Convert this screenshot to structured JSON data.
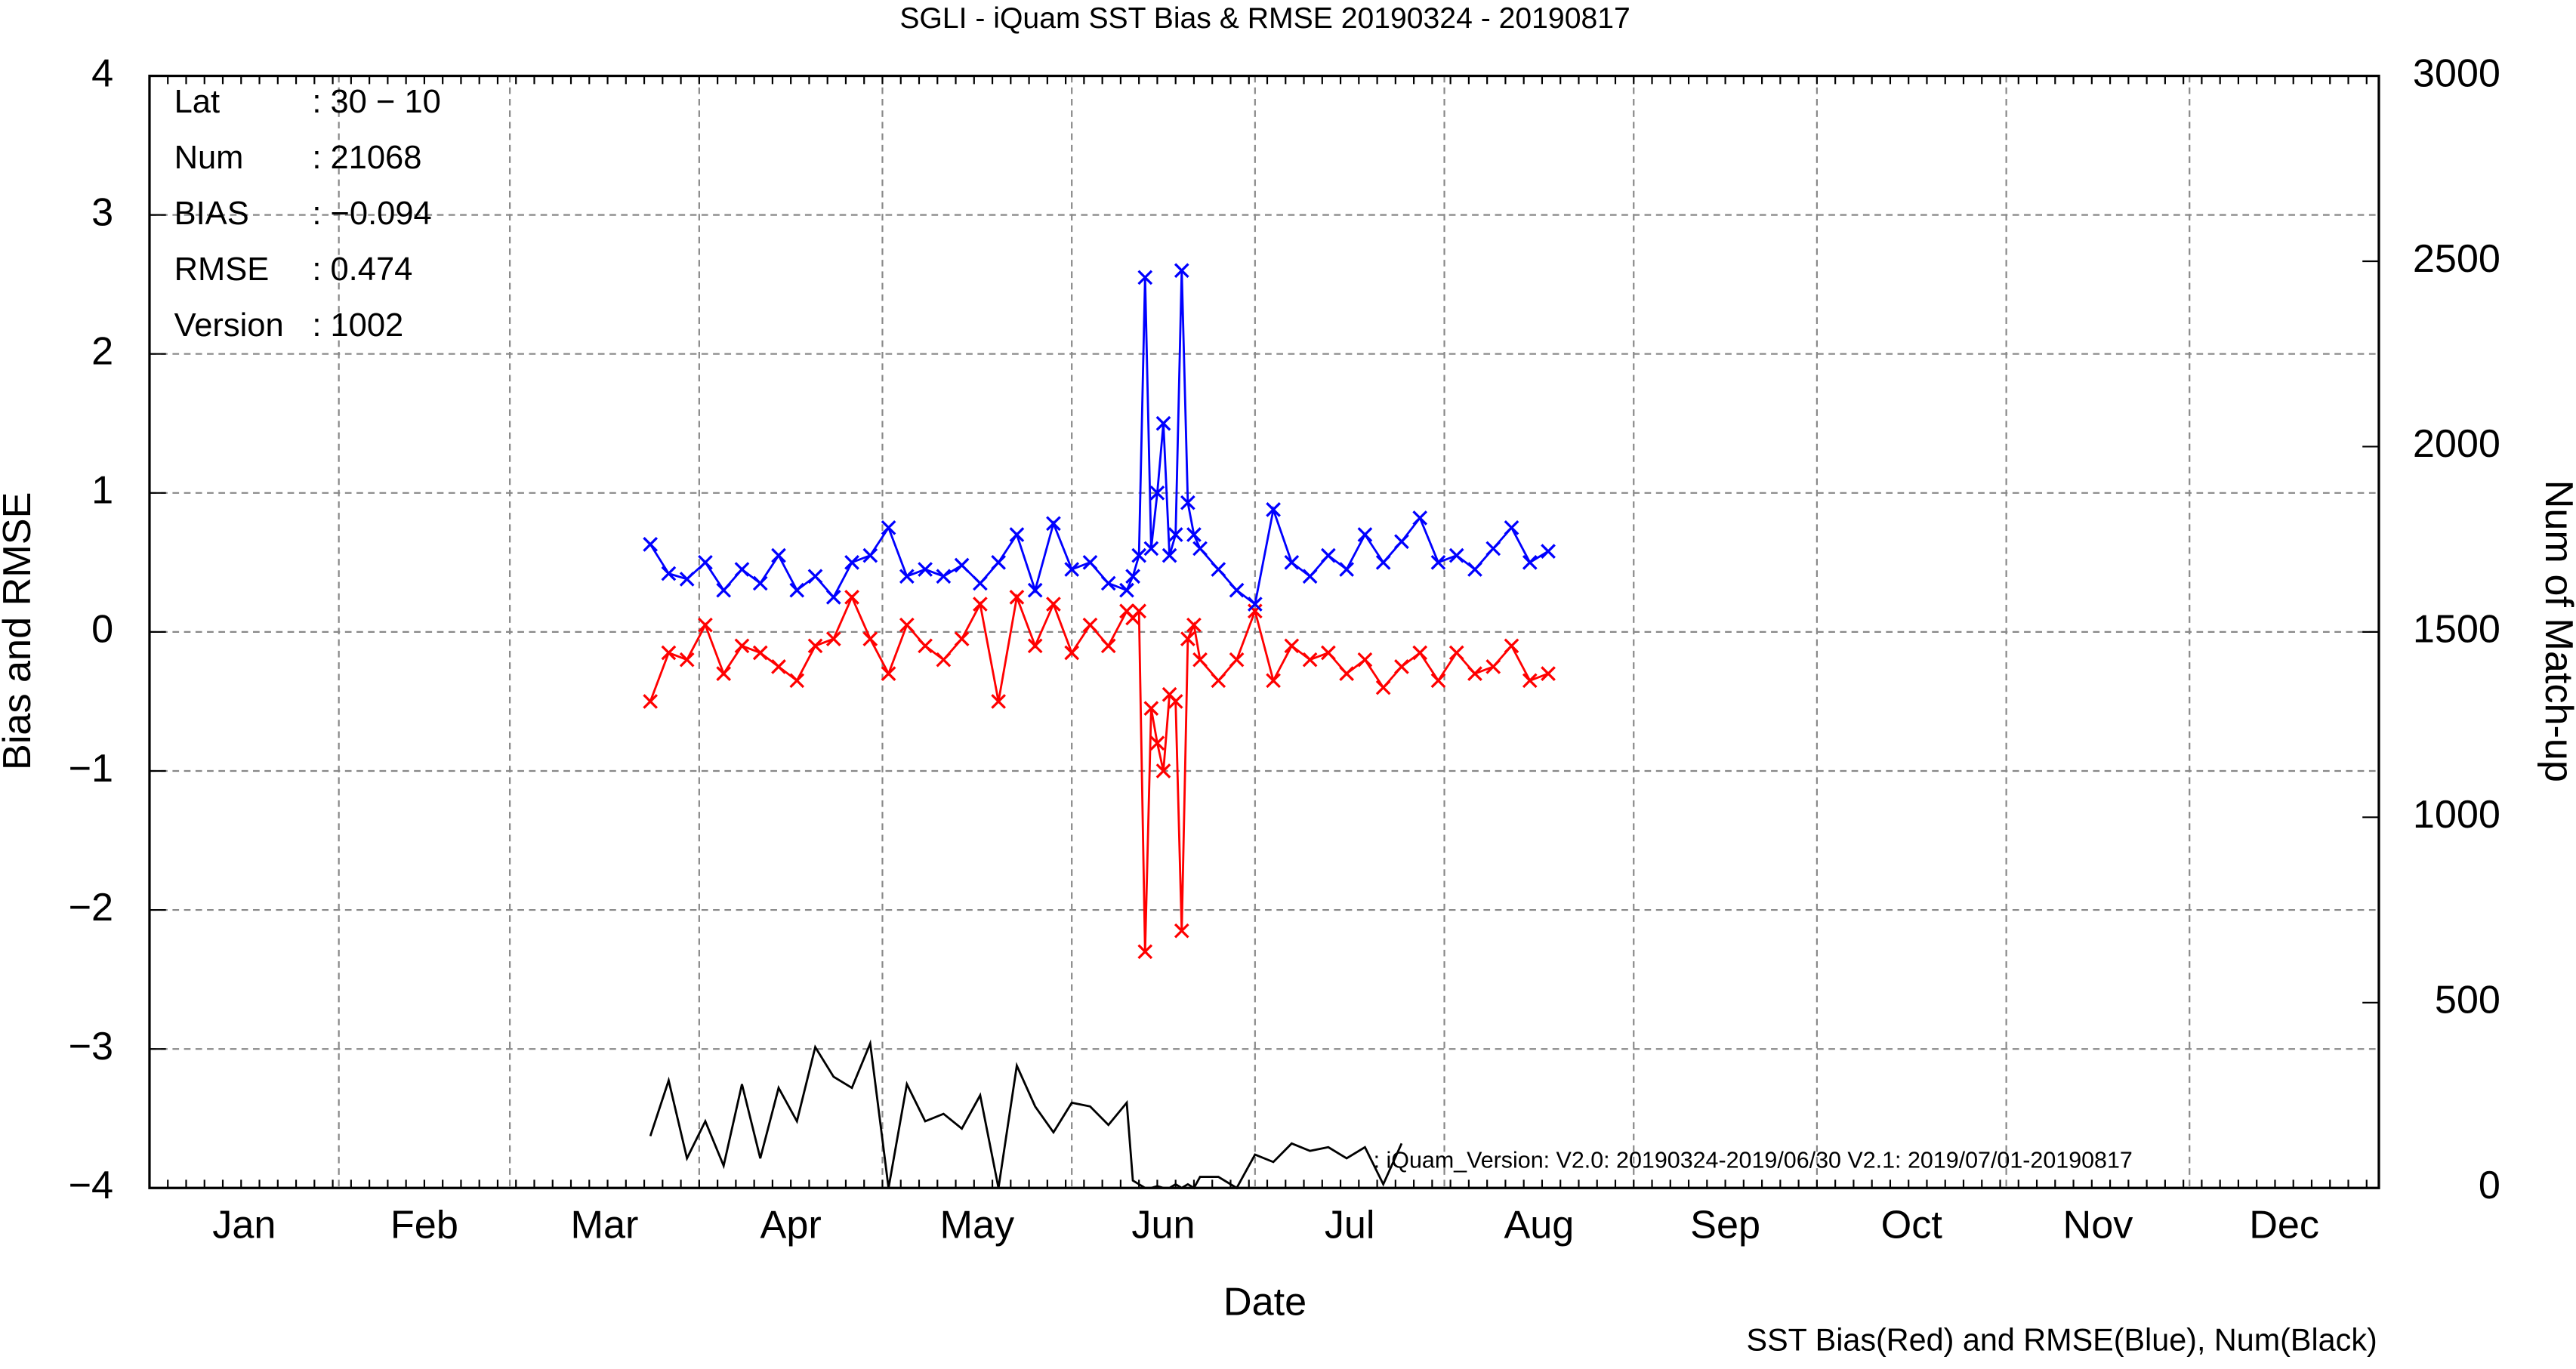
{
  "chart_data": {
    "type": "line",
    "title": "SGLI - iQuam  SST Bias & RMSE 20190324 - 20190817",
    "x_label": "Date",
    "y_label": "Bias and RMSE",
    "y2_label": "Num of Match-up",
    "footer": "SST Bias(Red) and RMSE(Blue), Num(Black)",
    "annotation": ": iQuam_Version: V2.0: 20190324-2019/06/30 V2.1: 2019/07/01-20190817",
    "info": [
      {
        "label": "Lat",
        "value": ": 30 − 10"
      },
      {
        "label": "Num",
        "value": ": 21068"
      },
      {
        "label": "BIAS",
        "value": ": −0.094"
      },
      {
        "label": "RMSE",
        "value": ": 0.474"
      },
      {
        "label": "Version",
        "value": ": 1002"
      }
    ],
    "xlim": [
      0,
      365
    ],
    "xticks": [
      {
        "value": 15.5,
        "label": "Jan"
      },
      {
        "value": 45,
        "label": "Feb"
      },
      {
        "value": 74.5,
        "label": "Mar"
      },
      {
        "value": 105,
        "label": "Apr"
      },
      {
        "value": 135.5,
        "label": "May"
      },
      {
        "value": 166,
        "label": "Jun"
      },
      {
        "value": 196.5,
        "label": "Jul"
      },
      {
        "value": 227.5,
        "label": "Aug"
      },
      {
        "value": 258,
        "label": "Sep"
      },
      {
        "value": 288.5,
        "label": "Oct"
      },
      {
        "value": 319,
        "label": "Nov"
      },
      {
        "value": 349.5,
        "label": "Dec"
      }
    ],
    "xgrid": [
      31,
      59,
      90,
      120,
      151,
      181,
      212,
      243,
      273,
      304,
      334
    ],
    "ylim": [
      -4,
      4
    ],
    "yticks": [
      {
        "value": -4,
        "label": "−4"
      },
      {
        "value": -3,
        "label": "−3"
      },
      {
        "value": -2,
        "label": "−2"
      },
      {
        "value": -1,
        "label": "−1"
      },
      0,
      1,
      2,
      3,
      4
    ],
    "y2lim": [
      0,
      3000
    ],
    "y2ticks": [
      0,
      500,
      1000,
      1500,
      2000,
      2500,
      3000
    ],
    "grid": true,
    "x": [
      82,
      85,
      88,
      91,
      94,
      97,
      100,
      103,
      106,
      109,
      112,
      115,
      118,
      121,
      124,
      127,
      130,
      133,
      136,
      139,
      142,
      145,
      148,
      151,
      154,
      157,
      160,
      161,
      162,
      163,
      164,
      165,
      166,
      167,
      168,
      169,
      170,
      171,
      172,
      175,
      178,
      181,
      184,
      187,
      190,
      193,
      196,
      199,
      202,
      205,
      208,
      211,
      214,
      217,
      220,
      223,
      226,
      229
    ],
    "series": [
      {
        "name": "Bias",
        "color": "#ff0000",
        "marker": "x",
        "values": [
          -0.5,
          -0.15,
          -0.2,
          0.05,
          -0.3,
          -0.1,
          -0.15,
          -0.25,
          -0.35,
          -0.1,
          -0.05,
          0.25,
          -0.05,
          -0.3,
          0.05,
          -0.1,
          -0.2,
          -0.05,
          0.2,
          -0.5,
          0.25,
          -0.1,
          0.2,
          -0.15,
          0.05,
          -0.1,
          0.15,
          0.1,
          0.15,
          -2.3,
          -0.55,
          -0.8,
          -1.0,
          -0.45,
          -0.5,
          -2.15,
          -0.05,
          0.05,
          -0.2,
          -0.35,
          -0.2,
          0.15,
          -0.35,
          -0.1,
          -0.2,
          -0.15,
          -0.3,
          -0.2,
          -0.4,
          -0.25,
          -0.15,
          -0.35,
          -0.15,
          -0.3,
          -0.25,
          -0.1,
          -0.35,
          -0.3
        ]
      },
      {
        "name": "RMSE",
        "color": "#0000ff",
        "marker": "x",
        "values": [
          0.63,
          0.42,
          0.38,
          0.5,
          0.3,
          0.45,
          0.35,
          0.55,
          0.3,
          0.4,
          0.25,
          0.5,
          0.55,
          0.75,
          0.4,
          0.45,
          0.4,
          0.48,
          0.35,
          0.5,
          0.7,
          0.3,
          0.78,
          0.45,
          0.5,
          0.35,
          0.3,
          0.4,
          0.55,
          2.55,
          0.6,
          1.0,
          1.5,
          0.55,
          0.7,
          2.6,
          0.93,
          0.7,
          0.6,
          0.45,
          0.3,
          0.2,
          0.88,
          0.5,
          0.4,
          0.55,
          0.45,
          0.7,
          0.5,
          0.65,
          0.82,
          0.5,
          0.55,
          0.45,
          0.6,
          0.75,
          0.5,
          0.58
        ]
      },
      {
        "name": "Num",
        "color": "#000000",
        "axis": "y2",
        "values": [
          140,
          290,
          80,
          180,
          60,
          280,
          80,
          270,
          180,
          380,
          300,
          270,
          390,
          0,
          280,
          180,
          200,
          160,
          250,
          0,
          330,
          220,
          150,
          230,
          220,
          170,
          230,
          20,
          10,
          0,
          0,
          5,
          0,
          0,
          10,
          0,
          10,
          0,
          30,
          30,
          0,
          90,
          70,
          120,
          100,
          110,
          80,
          110,
          10,
          120,
          null,
          null,
          null,
          null,
          null,
          null,
          null,
          null
        ]
      }
    ]
  }
}
